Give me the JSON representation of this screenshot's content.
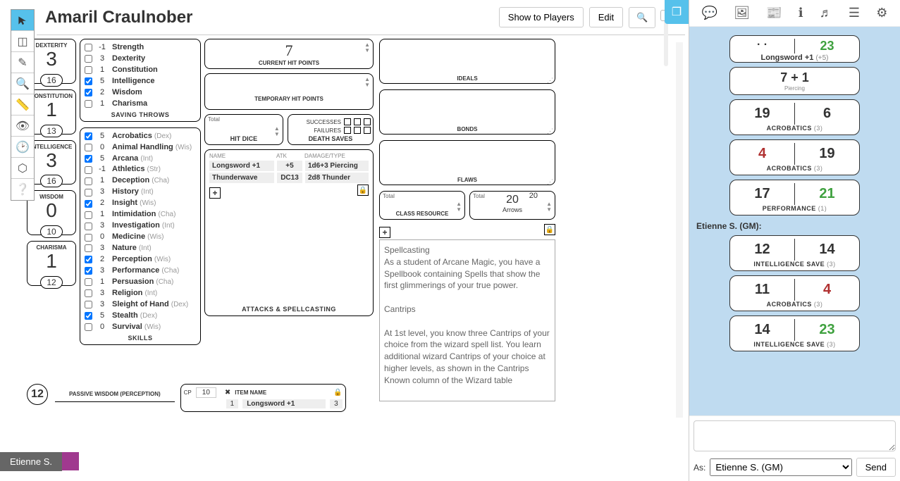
{
  "header": {
    "title": "Amaril Craulnober",
    "show_players": "Show to Players",
    "edit": "Edit"
  },
  "abilities": [
    {
      "name": "DEXTERITY",
      "score": "3",
      "mod": "16"
    },
    {
      "name": "CONSTITUTION",
      "score": "1",
      "mod": "13"
    },
    {
      "name": "INTELLIGENCE",
      "score": "3",
      "mod": "16"
    },
    {
      "name": "WISDOM",
      "score": "0",
      "mod": "10"
    },
    {
      "name": "CHARISMA",
      "score": "1",
      "mod": "12"
    }
  ],
  "saving_throws_label": "SAVING THROWS",
  "saving_throws": [
    {
      "checked": false,
      "val": "-1",
      "name": "Strength"
    },
    {
      "checked": false,
      "val": "3",
      "name": "Dexterity"
    },
    {
      "checked": false,
      "val": "1",
      "name": "Constitution"
    },
    {
      "checked": true,
      "val": "5",
      "name": "Intelligence"
    },
    {
      "checked": true,
      "val": "2",
      "name": "Wisdom"
    },
    {
      "checked": false,
      "val": "1",
      "name": "Charisma"
    }
  ],
  "skills_label": "SKILLS",
  "skills": [
    {
      "checked": true,
      "val": "5",
      "name": "Acrobatics",
      "abil": "(Dex)"
    },
    {
      "checked": false,
      "val": "0",
      "name": "Animal Handling",
      "abil": "(Wis)"
    },
    {
      "checked": true,
      "val": "5",
      "name": "Arcana",
      "abil": "(Int)"
    },
    {
      "checked": false,
      "val": "-1",
      "name": "Athletics",
      "abil": "(Str)"
    },
    {
      "checked": false,
      "val": "1",
      "name": "Deception",
      "abil": "(Cha)"
    },
    {
      "checked": false,
      "val": "3",
      "name": "History",
      "abil": "(Int)"
    },
    {
      "checked": true,
      "val": "2",
      "name": "Insight",
      "abil": "(Wis)"
    },
    {
      "checked": false,
      "val": "1",
      "name": "Intimidation",
      "abil": "(Cha)"
    },
    {
      "checked": false,
      "val": "3",
      "name": "Investigation",
      "abil": "(Int)"
    },
    {
      "checked": false,
      "val": "0",
      "name": "Medicine",
      "abil": "(Wis)"
    },
    {
      "checked": false,
      "val": "3",
      "name": "Nature",
      "abil": "(Int)"
    },
    {
      "checked": true,
      "val": "2",
      "name": "Perception",
      "abil": "(Wis)"
    },
    {
      "checked": true,
      "val": "3",
      "name": "Performance",
      "abil": "(Cha)"
    },
    {
      "checked": false,
      "val": "1",
      "name": "Persuasion",
      "abil": "(Cha)"
    },
    {
      "checked": false,
      "val": "3",
      "name": "Religion",
      "abil": "(Int)"
    },
    {
      "checked": false,
      "val": "3",
      "name": "Sleight of Hand",
      "abil": "(Dex)"
    },
    {
      "checked": true,
      "val": "5",
      "name": "Stealth",
      "abil": "(Dex)"
    },
    {
      "checked": false,
      "val": "0",
      "name": "Survival",
      "abil": "(Wis)"
    }
  ],
  "hp": {
    "cur_label": "CURRENT HIT POINTS",
    "cur_val": "7",
    "tmp_label": "TEMPORARY HIT POINTS"
  },
  "hd": {
    "label": "HIT DICE",
    "total": "Total"
  },
  "ds": {
    "label": "DEATH SAVES",
    "succ": "SUCCESSES",
    "fail": "FAILURES"
  },
  "atk": {
    "head": [
      "NAME",
      "ATK",
      "DAMAGE/TYPE"
    ],
    "rows": [
      [
        "Longsword +1",
        "+5",
        "1d6+3 Piercing"
      ],
      [
        "Thunderwave",
        "DC13",
        "2d8 Thunder"
      ]
    ],
    "label": "ATTACKS & SPELLCASTING"
  },
  "traits": {
    "ideals": "IDEALS",
    "bonds": "BONDS",
    "flaws": "FLAWS"
  },
  "resources": {
    "class": {
      "total": "Total",
      "label": "CLASS RESOURCE"
    },
    "arrows": {
      "total": "Total",
      "topval": "20",
      "val": "20",
      "label": "Arrows"
    }
  },
  "features_text": "Spellcasting\nAs a student of Arcane Magic, you have a Spellbook containing Spells that show the first glimmerings of your true power.\n\nCantrips\n\nAt 1st level, you know three Cantrips of your choice from the wizard spell list. You learn additional wizard Cantrips of your choice at higher levels, as shown in the Cantrips Known column of the Wizard table",
  "passive": {
    "val": "12",
    "label": "PASSIVE WISDOM (PERCEPTION)"
  },
  "equip": {
    "cp": "CP",
    "cp_val": "10",
    "item_head": "ITEM NAME",
    "row_qty": "1",
    "row_name": "Longsword +1",
    "row_wt": "3"
  },
  "rolls": [
    {
      "type": "sum",
      "formula": "7 + 1",
      "dmg": "Piercing",
      "head": "Longsword +1",
      "bonus": "(+5)",
      "pretop": "23"
    },
    {
      "type": "pair",
      "v1": "19",
      "v2": "6",
      "v1c": "",
      "v2c": "",
      "label": "ACROBATICS",
      "paren": "(3)"
    },
    {
      "type": "pair",
      "v1": "4",
      "v2": "19",
      "v1c": "red",
      "v2c": "",
      "label": "ACROBATICS",
      "paren": "(3)"
    },
    {
      "type": "pair",
      "v1": "17",
      "v2": "21",
      "v1c": "",
      "v2c": "green",
      "label": "PERFORMANCE",
      "paren": "(1)"
    }
  ],
  "gm_label": "Etienne S. (GM):",
  "gm_rolls": [
    {
      "type": "pair",
      "v1": "12",
      "v2": "14",
      "v1c": "",
      "v2c": "",
      "label": "INTELLIGENCE SAVE",
      "paren": "(3)"
    },
    {
      "type": "pair",
      "v1": "11",
      "v2": "4",
      "v1c": "",
      "v2c": "red",
      "label": "ACROBATICS",
      "paren": "(3)"
    },
    {
      "type": "pair",
      "v1": "14",
      "v2": "23",
      "v1c": "",
      "v2c": "green",
      "label": "INTELLIGENCE SAVE",
      "paren": "(3)"
    }
  ],
  "chat": {
    "as": "As:",
    "speaker": "Etienne S. (GM)",
    "send": "Send"
  },
  "player_name": "Etienne S."
}
